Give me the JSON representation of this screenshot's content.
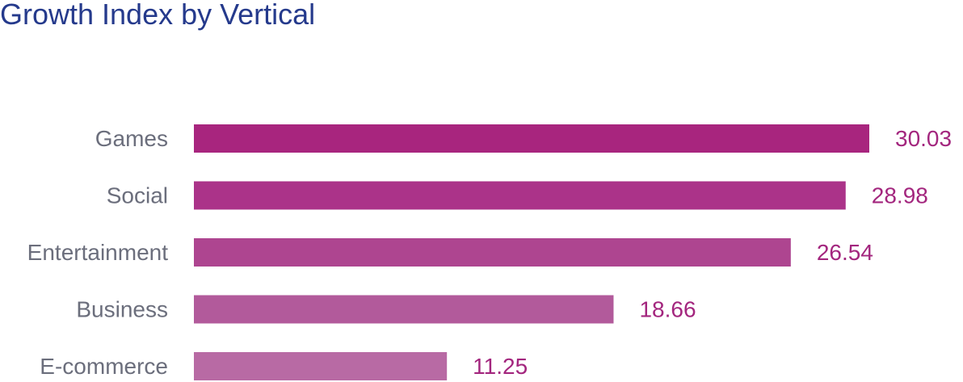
{
  "chart_data": {
    "type": "bar",
    "orientation": "horizontal",
    "title": "Growth Index by Vertical",
    "categories": [
      "Games",
      "Social",
      "Entertainment",
      "Business",
      "E-commerce"
    ],
    "values": [
      30.03,
      28.98,
      26.54,
      18.66,
      11.25
    ],
    "value_labels": [
      "30.03",
      "28.98",
      "26.54",
      "18.66",
      "11.25"
    ],
    "bar_colors": [
      "#a8257e",
      "#ab3389",
      "#ae4590",
      "#b25a9b",
      "#b86aa4"
    ],
    "xlim": [
      0,
      30.03
    ],
    "grid": false,
    "legend": "none",
    "colors": {
      "title": "#253a8c",
      "category_text": "#6b6e7c",
      "value_text": "#a3267e"
    }
  }
}
